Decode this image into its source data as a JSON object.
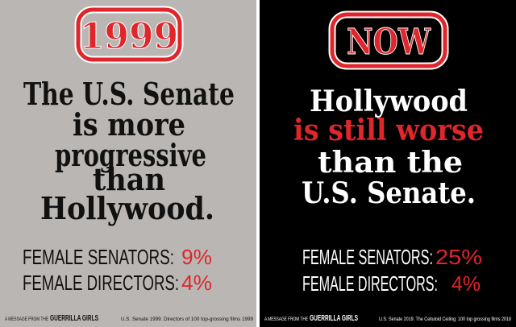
{
  "panels": [
    {
      "badge": "1999",
      "headline": [
        "The U.S. Senate",
        "is more",
        "progressive",
        "than",
        "Hollywood."
      ],
      "stats": [
        {
          "label": "FEMALE SENATORS:",
          "value": "9%"
        },
        {
          "label": "FEMALE DIRECTORS:",
          "value": "4%"
        }
      ],
      "footer": {
        "message": "A MESSAGE FROM THE",
        "group": "GUERRILLA GIRLS",
        "source": "U.S. Senate 1999. Directors of 100 top-grossing films 1999"
      }
    },
    {
      "badge": "NOW",
      "headline": [
        "Hollywood",
        "is still worse",
        "than the",
        "U.S. Senate."
      ],
      "stats": [
        {
          "label": "FEMALE SENATORS:",
          "value": "25%"
        },
        {
          "label": "FEMALE DIRECTORS:",
          "value": "4%"
        }
      ],
      "footer": {
        "message": "A MESSAGE FROM THE",
        "group": "GUERRILLA GIRLS",
        "source": "U.S. Senate 2019. The Celluloid Ceiling: 100 top grossing films 2018"
      }
    }
  ]
}
